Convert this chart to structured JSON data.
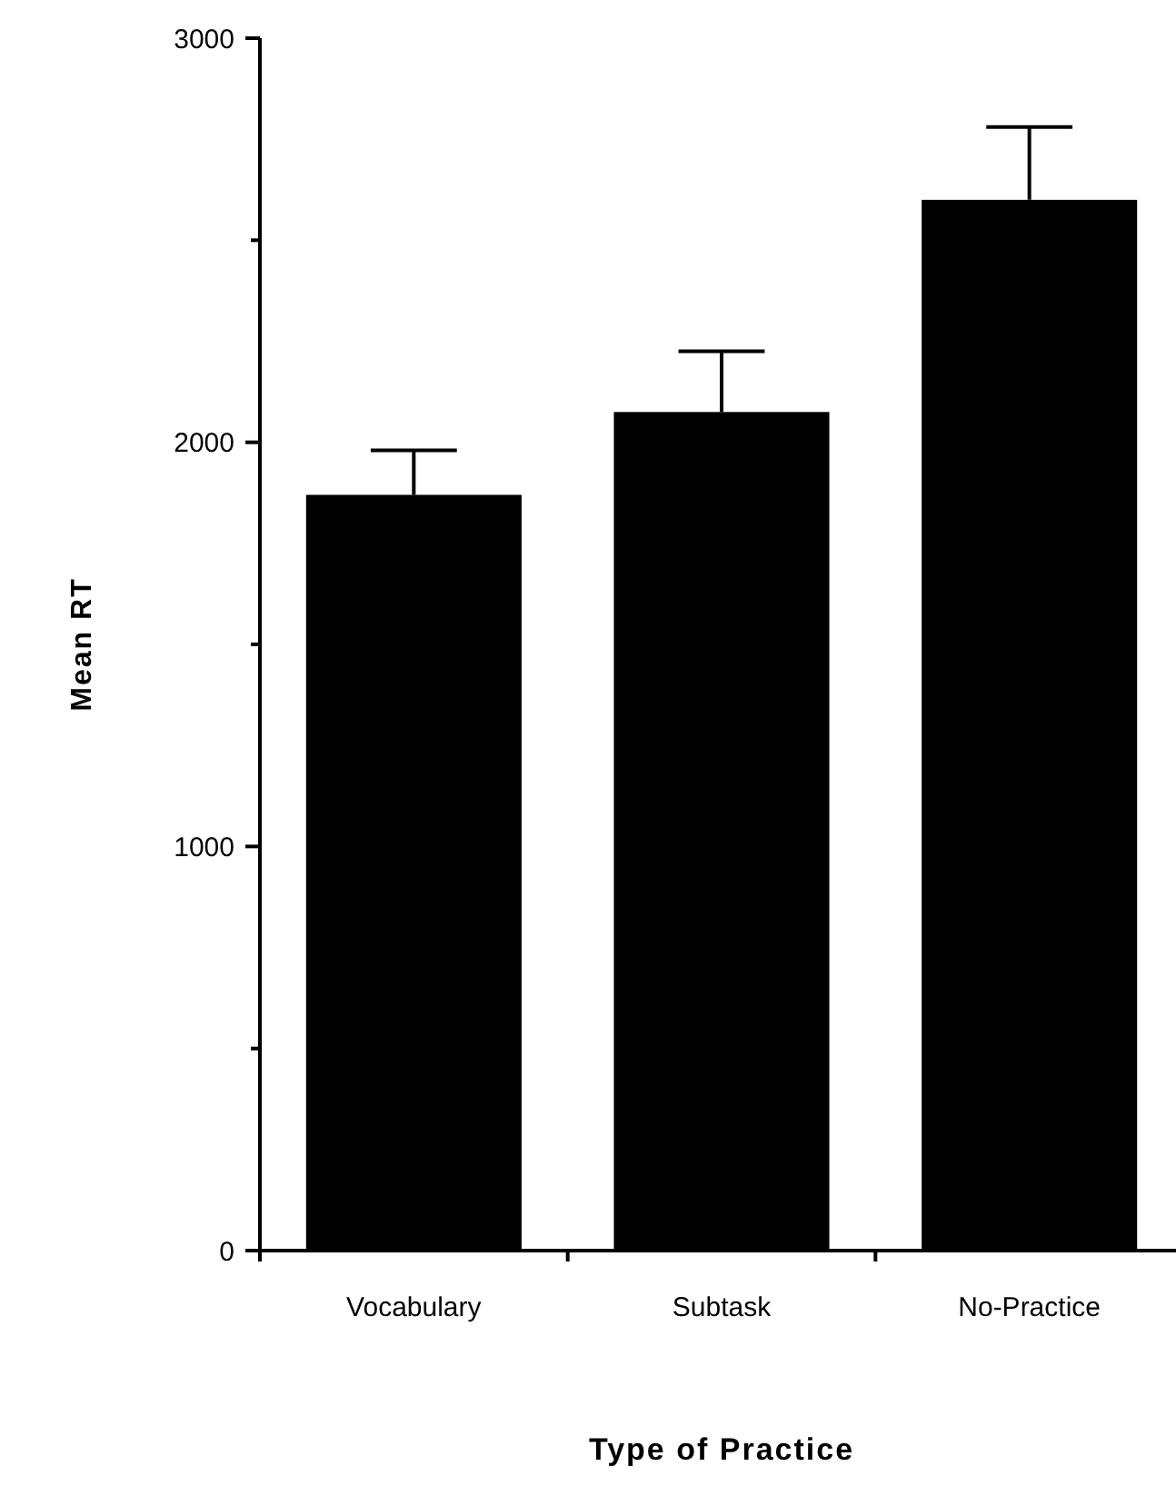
{
  "chart_data": {
    "type": "bar",
    "xlabel": "Type of Practice",
    "ylabel": "Mean RT",
    "categories": [
      "Vocabulary",
      "Subtask",
      "No-Practice"
    ],
    "values": [
      1870,
      2075,
      2600
    ],
    "color": "#000000",
    "errors": [
      [
        1870,
        1980
      ],
      [
        2075,
        2225
      ],
      [
        2600,
        2780
      ]
    ],
    "ylim": [
      0,
      3000
    ],
    "yticks": [
      0,
      {
        "value": 500,
        "label": null
      },
      1000,
      {
        "value": 1500,
        "label": null
      },
      2000,
      {
        "value": 2500,
        "label": null
      },
      3000
    ],
    "grid": false
  }
}
